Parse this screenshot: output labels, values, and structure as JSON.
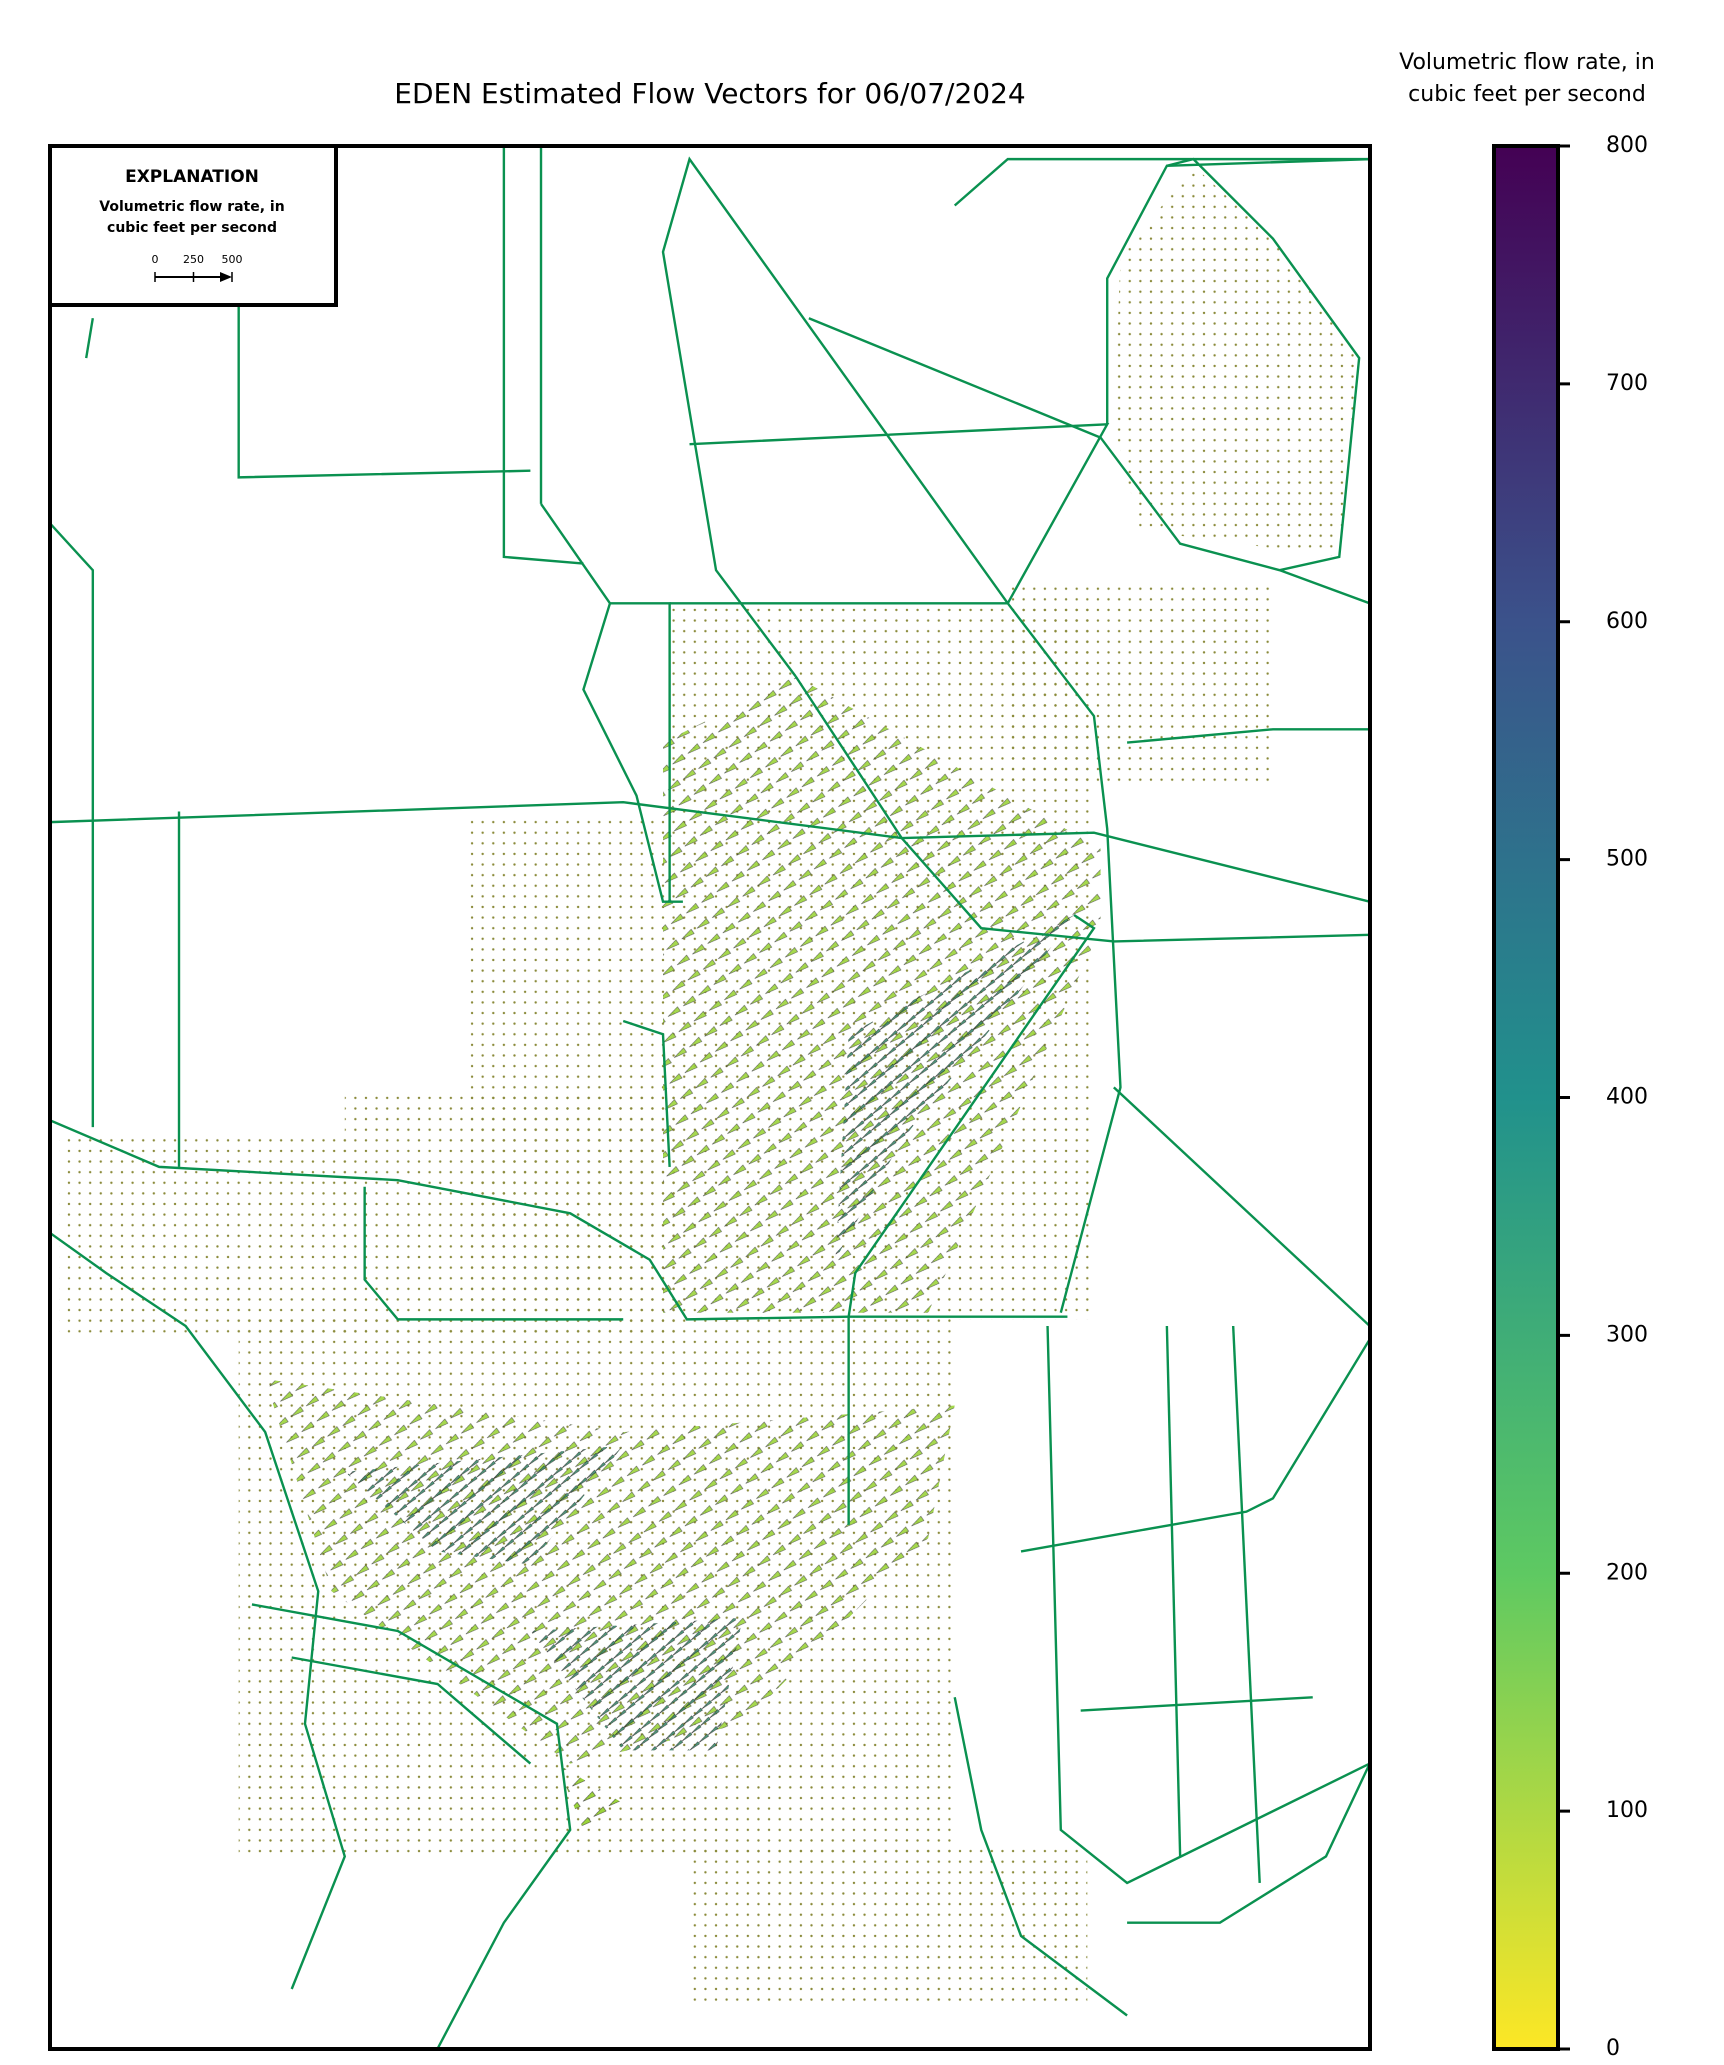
{
  "chart_data": {
    "type": "vector-map",
    "title": "EDEN Estimated Flow Vectors for 06/07/2024",
    "colorbar": {
      "label": [
        "Volumetric flow rate, in",
        "cubic feet per second"
      ],
      "lim": [
        0,
        800
      ],
      "ticks": [
        0,
        100,
        200,
        300,
        400,
        500,
        600,
        700,
        800
      ],
      "colormap": [
        "#fde725",
        "#5ec962",
        "#21918c",
        "#3b528b",
        "#440154"
      ]
    },
    "explanation": {
      "title": "EXPLANATION",
      "label": [
        "Volumetric flow rate, in",
        "cubic feet per second"
      ],
      "scale_ticks": [
        0,
        250,
        500
      ]
    }
  }
}
